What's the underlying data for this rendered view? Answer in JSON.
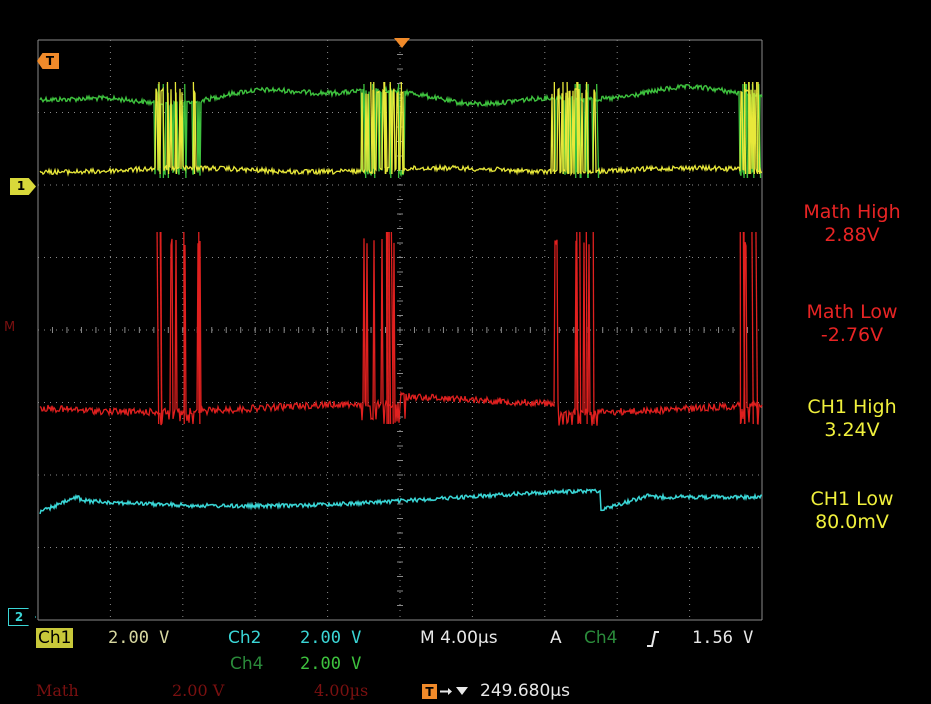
{
  "colors": {
    "ch1": "#e8e83a",
    "ch2": "#3ad6d6",
    "ch4": "#3ec23e",
    "math": "#e0201f",
    "ch4_dim": "#2a8a3a",
    "math_dim": "#7a1010",
    "grid": "#8a8a8a",
    "text_white": "#e8e8e8",
    "trigger_marker": "#f08a2a"
  },
  "markers": {
    "trigger": "T",
    "ch1": "1",
    "ch2": "2",
    "math": "M"
  },
  "measurements": [
    {
      "label": "Math High",
      "value": "2.88V",
      "color": "#e82424"
    },
    {
      "label": "Math Low",
      "value": "-2.76V",
      "color": "#e82424"
    },
    {
      "label": "CH1 High",
      "value": "3.24V",
      "color": "#f0f03c"
    },
    {
      "label": "CH1 Low",
      "value": "80.0mV",
      "color": "#f0f03c"
    }
  ],
  "status": {
    "ch1_label": "Ch1",
    "ch1_scale": "2.00 V",
    "ch2_label": "Ch2",
    "ch2_scale": "2.00 V",
    "ch4_label": "Ch4",
    "ch4_scale": "2.00 V",
    "timebase": "M 4.00µs",
    "trigger_mode": "A",
    "trigger_source": "Ch4",
    "trigger_slope_icon": "rising-edge-icon",
    "trigger_level": "1.56 V",
    "math_label": "Math",
    "math_scale": "2.00 V",
    "math_timebase": "4.00µs",
    "trigger_position_icon": "trigger-position-icon",
    "trigger_position": "249.680µs"
  }
}
